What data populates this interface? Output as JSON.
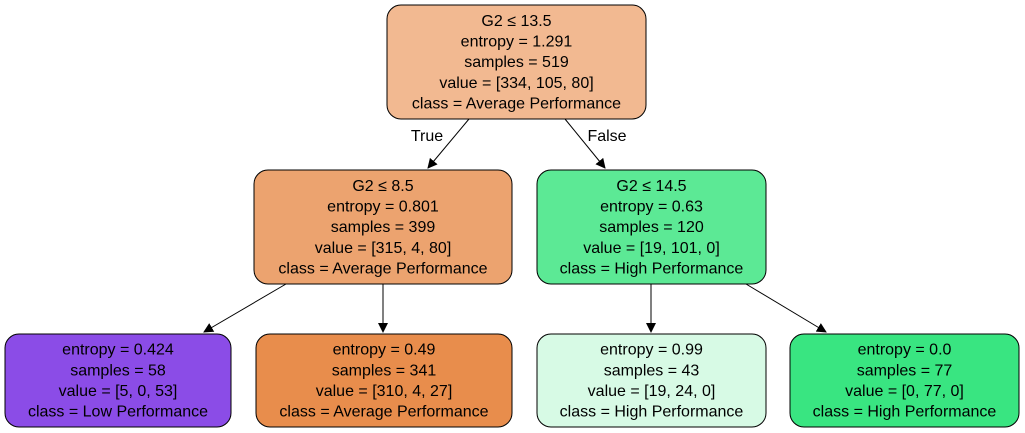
{
  "nodes": [
    {
      "id": "root",
      "lines": [
        "G2 ≤ 13.5",
        "entropy = 1.291",
        "samples = 519",
        "value = [334, 105, 80]",
        "class = Average Performance"
      ],
      "fill": "#f2b991"
    },
    {
      "id": "left",
      "lines": [
        "G2 ≤ 8.5",
        "entropy = 0.801",
        "samples = 399",
        "value = [315, 4, 80]",
        "class = Average Performance"
      ],
      "fill": "#eca36f"
    },
    {
      "id": "right",
      "lines": [
        "G2 ≤ 14.5",
        "entropy = 0.63",
        "samples = 120",
        "value = [19, 101, 0]",
        "class = High Performance"
      ],
      "fill": "#5ce995"
    },
    {
      "id": "ll",
      "lines": [
        "entropy = 0.424",
        "samples = 58",
        "value = [5, 0, 53]",
        "class = Low Performance"
      ],
      "fill": "#8b4ce7"
    },
    {
      "id": "lr",
      "lines": [
        "entropy = 0.49",
        "samples = 341",
        "value = [310, 4, 27]",
        "class = Average Performance"
      ],
      "fill": "#e88d4c"
    },
    {
      "id": "rl",
      "lines": [
        "entropy = 0.99",
        "samples = 43",
        "value = [19, 24, 0]",
        "class = High Performance"
      ],
      "fill": "#d7fae5"
    },
    {
      "id": "rr",
      "lines": [
        "entropy = 0.0",
        "samples = 77",
        "value = [0, 77, 0]",
        "class = High Performance"
      ],
      "fill": "#39e581"
    }
  ],
  "edges": [
    {
      "from": "root",
      "to": "left",
      "label": "True"
    },
    {
      "from": "root",
      "to": "right",
      "label": "False"
    },
    {
      "from": "left",
      "to": "ll",
      "label": ""
    },
    {
      "from": "left",
      "to": "lr",
      "label": ""
    },
    {
      "from": "right",
      "to": "rl",
      "label": ""
    },
    {
      "from": "right",
      "to": "rr",
      "label": ""
    }
  ]
}
